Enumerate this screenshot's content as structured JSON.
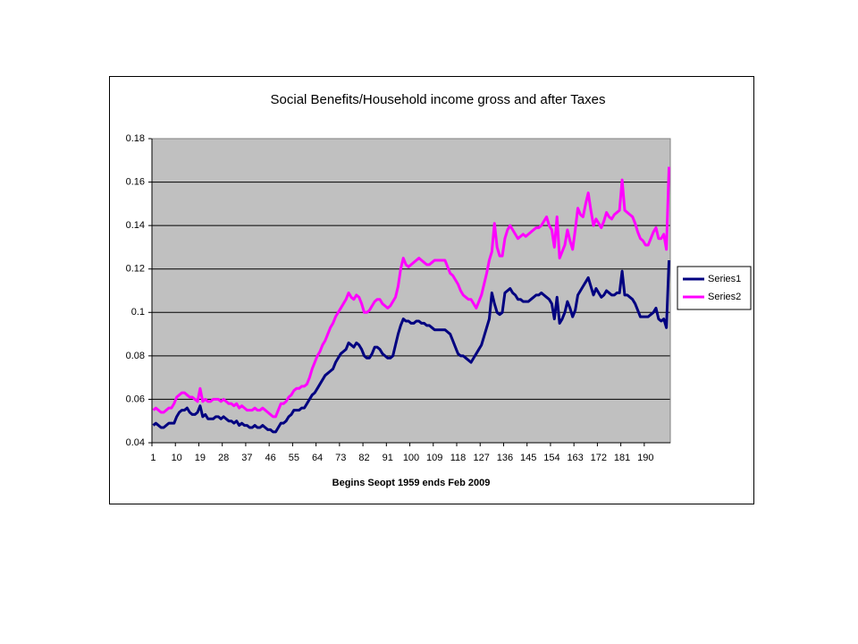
{
  "chart_data": {
    "type": "line",
    "title": "Social Benefits/Household income gross and after Taxes",
    "x_label": "Begins Seopt 1959 ends Feb 2009",
    "categories": [
      1,
      null,
      null,
      null,
      null,
      null,
      null,
      null,
      null,
      10,
      null,
      null,
      null,
      null,
      null,
      null,
      null,
      null,
      19,
      null,
      null,
      null,
      null,
      null,
      null,
      null,
      null,
      28,
      null,
      null,
      null,
      null,
      null,
      null,
      null,
      null,
      37,
      null,
      null,
      null,
      null,
      null,
      null,
      null,
      null,
      46,
      null,
      null,
      null,
      null,
      null,
      null,
      null,
      null,
      55,
      null,
      null,
      null,
      null,
      null,
      null,
      null,
      null,
      64,
      null,
      null,
      null,
      null,
      null,
      null,
      null,
      null,
      73,
      null,
      null,
      null,
      null,
      null,
      null,
      null,
      null,
      82,
      null,
      null,
      null,
      null,
      null,
      null,
      null,
      null,
      91,
      null,
      null,
      null,
      null,
      null,
      null,
      null,
      null,
      100,
      null,
      null,
      null,
      null,
      null,
      null,
      null,
      null,
      109,
      null,
      null,
      null,
      null,
      null,
      null,
      null,
      null,
      118,
      null,
      null,
      null,
      null,
      null,
      null,
      null,
      null,
      127,
      null,
      null,
      null,
      null,
      null,
      null,
      null,
      null,
      136,
      null,
      null,
      null,
      null,
      null,
      null,
      null,
      null,
      145,
      null,
      null,
      null,
      null,
      null,
      null,
      null,
      null,
      154,
      null,
      null,
      null,
      null,
      null,
      null,
      null,
      null,
      163,
      null,
      null,
      null,
      null,
      null,
      null,
      null,
      null,
      172,
      null,
      null,
      null,
      null,
      null,
      null,
      null,
      null,
      181,
      null,
      null,
      null,
      null,
      null,
      null,
      null,
      null,
      190,
      null,
      null,
      null,
      null,
      null,
      null,
      null,
      null,
      null
    ],
    "series": [
      {
        "name": "Series1",
        "color": "#000080",
        "values": [
          0.048,
          0.049,
          0.048,
          0.047,
          0.047,
          0.048,
          0.049,
          0.049,
          0.049,
          0.052,
          0.054,
          0.055,
          0.055,
          0.056,
          0.054,
          0.053,
          0.053,
          0.054,
          0.057,
          0.052,
          0.053,
          0.051,
          0.051,
          0.051,
          0.052,
          0.052,
          0.051,
          0.052,
          0.051,
          0.05,
          0.05,
          0.049,
          0.05,
          0.048,
          0.049,
          0.048,
          0.048,
          0.047,
          0.047,
          0.048,
          0.047,
          0.047,
          0.048,
          0.047,
          0.046,
          0.046,
          0.045,
          0.045,
          0.047,
          0.049,
          0.049,
          0.05,
          0.052,
          0.053,
          0.055,
          0.055,
          0.055,
          0.056,
          0.056,
          0.058,
          0.06,
          0.062,
          0.063,
          0.065,
          0.067,
          0.069,
          0.071,
          0.072,
          0.073,
          0.074,
          0.077,
          0.079,
          0.081,
          0.082,
          0.083,
          0.086,
          0.085,
          0.084,
          0.086,
          0.085,
          0.083,
          0.08,
          0.079,
          0.079,
          0.081,
          0.084,
          0.084,
          0.083,
          0.081,
          0.08,
          0.079,
          0.079,
          0.08,
          0.085,
          0.09,
          0.094,
          0.097,
          0.096,
          0.096,
          0.095,
          0.095,
          0.096,
          0.096,
          0.095,
          0.095,
          0.094,
          0.094,
          0.093,
          0.092,
          0.092,
          0.092,
          0.092,
          0.092,
          0.091,
          0.09,
          0.087,
          0.084,
          0.081,
          0.08,
          0.08,
          0.079,
          0.078,
          0.077,
          0.079,
          0.081,
          0.083,
          0.085,
          0.089,
          0.093,
          0.097,
          0.109,
          0.104,
          0.1,
          0.099,
          0.1,
          0.109,
          0.11,
          0.111,
          0.109,
          0.108,
          0.106,
          0.106,
          0.105,
          0.105,
          0.105,
          0.106,
          0.107,
          0.108,
          0.108,
          0.109,
          0.108,
          0.107,
          0.106,
          0.104,
          0.097,
          0.107,
          0.095,
          0.097,
          0.1,
          0.105,
          0.102,
          0.098,
          0.101,
          0.108,
          0.11,
          0.112,
          0.114,
          0.116,
          0.112,
          0.108,
          0.111,
          0.109,
          0.107,
          0.108,
          0.11,
          0.109,
          0.108,
          0.108,
          0.109,
          0.109,
          0.119,
          0.108,
          0.108,
          0.107,
          0.106,
          0.104,
          0.101,
          0.098,
          0.098,
          0.098,
          0.098,
          0.099,
          0.1,
          0.102,
          0.097,
          0.096,
          0.097,
          0.093,
          0.124
        ]
      },
      {
        "name": "Series2",
        "color": "#ff00ff",
        "values": [
          0.055,
          0.056,
          0.055,
          0.054,
          0.054,
          0.055,
          0.056,
          0.056,
          0.058,
          0.061,
          0.062,
          0.063,
          0.063,
          0.062,
          0.061,
          0.061,
          0.06,
          0.059,
          0.065,
          0.059,
          0.06,
          0.059,
          0.059,
          0.06,
          0.06,
          0.06,
          0.059,
          0.06,
          0.059,
          0.058,
          0.058,
          0.057,
          0.058,
          0.056,
          0.057,
          0.056,
          0.055,
          0.055,
          0.055,
          0.056,
          0.055,
          0.055,
          0.056,
          0.055,
          0.054,
          0.053,
          0.052,
          0.052,
          0.055,
          0.058,
          0.058,
          0.059,
          0.061,
          0.062,
          0.064,
          0.065,
          0.065,
          0.066,
          0.066,
          0.067,
          0.07,
          0.074,
          0.077,
          0.08,
          0.082,
          0.085,
          0.087,
          0.09,
          0.093,
          0.095,
          0.098,
          0.1,
          0.102,
          0.104,
          0.106,
          0.109,
          0.107,
          0.106,
          0.108,
          0.107,
          0.104,
          0.1,
          0.1,
          0.101,
          0.103,
          0.105,
          0.106,
          0.106,
          0.104,
          0.103,
          0.102,
          0.103,
          0.105,
          0.107,
          0.112,
          0.12,
          0.125,
          0.122,
          0.121,
          0.122,
          0.123,
          0.124,
          0.125,
          0.124,
          0.123,
          0.122,
          0.122,
          0.123,
          0.124,
          0.124,
          0.124,
          0.124,
          0.124,
          0.121,
          0.118,
          0.117,
          0.115,
          0.113,
          0.11,
          0.108,
          0.107,
          0.106,
          0.106,
          0.104,
          0.102,
          0.105,
          0.108,
          0.113,
          0.118,
          0.124,
          0.128,
          0.141,
          0.13,
          0.126,
          0.126,
          0.134,
          0.138,
          0.14,
          0.138,
          0.136,
          0.134,
          0.135,
          0.136,
          0.135,
          0.136,
          0.137,
          0.138,
          0.139,
          0.139,
          0.14,
          0.142,
          0.144,
          0.14,
          0.138,
          0.13,
          0.144,
          0.125,
          0.128,
          0.131,
          0.138,
          0.133,
          0.129,
          0.138,
          0.148,
          0.145,
          0.144,
          0.15,
          0.155,
          0.147,
          0.14,
          0.143,
          0.141,
          0.139,
          0.142,
          0.146,
          0.144,
          0.143,
          0.145,
          0.146,
          0.147,
          0.161,
          0.147,
          0.146,
          0.145,
          0.144,
          0.141,
          0.137,
          0.134,
          0.133,
          0.131,
          0.131,
          0.134,
          0.137,
          0.139,
          0.134,
          0.134,
          0.136,
          0.129,
          0.167
        ]
      }
    ],
    "ylim": [
      0.04,
      0.18
    ],
    "yticks": [
      0.04,
      0.06,
      0.08,
      0.1,
      0.12,
      0.14,
      0.16,
      0.18
    ],
    "grid": true,
    "legend": "right",
    "plot_background": "#c0c0c0"
  }
}
